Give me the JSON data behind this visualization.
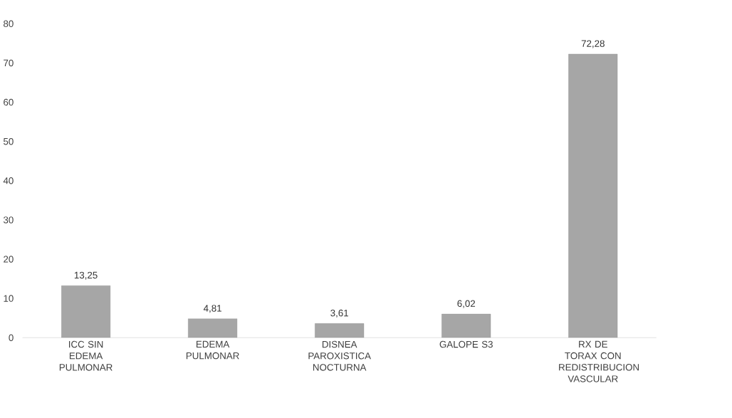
{
  "chart_data": {
    "type": "bar",
    "categories": [
      "ICC SIN EDEMA PULMONAR",
      "EDEMA PULMONAR",
      "DISNEA PAROXISTICA NOCTURNA",
      "GALOPE S3",
      "RX DE TORAX CON REDISTRIBUCION VASCULAR"
    ],
    "values": [
      13.25,
      4.81,
      3.61,
      6.02,
      72.28
    ],
    "value_labels": [
      "13,25",
      "4,81",
      "3,61",
      "6,02",
      "72,28"
    ],
    "color": "#a6a6a6",
    "ylim": [
      0,
      80
    ],
    "yticks": [
      0,
      10,
      20,
      30,
      40,
      50,
      60,
      70,
      80
    ]
  }
}
